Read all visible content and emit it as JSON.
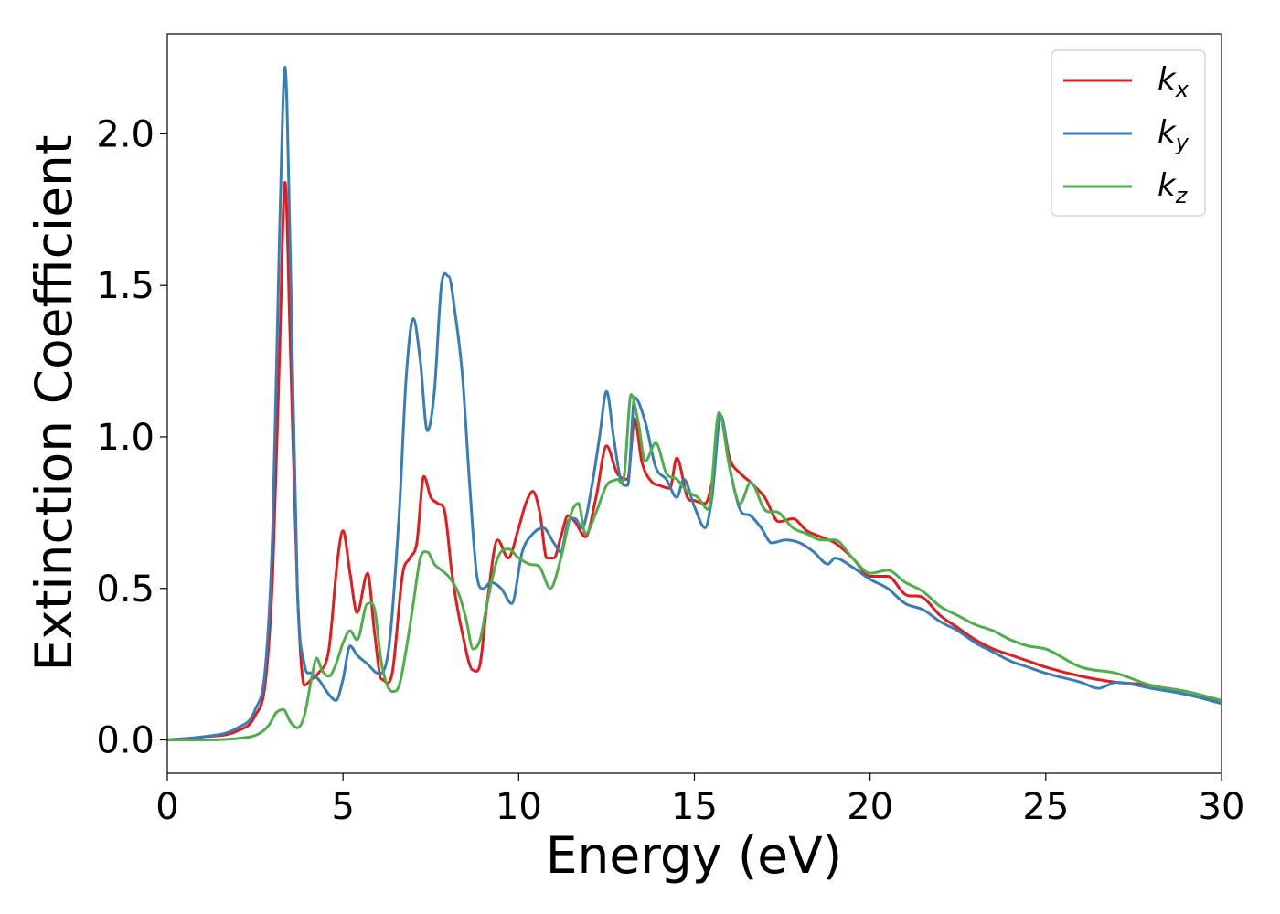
{
  "chart_data": {
    "type": "line",
    "title": "",
    "xlabel": "Energy (eV)",
    "ylabel": "Extinction Coefficient",
    "xlim": [
      0,
      30
    ],
    "ylim": [
      -0.11,
      2.33
    ],
    "xticks": [
      "0",
      "5",
      "10",
      "15",
      "20",
      "25",
      "30"
    ],
    "yticks": [
      "0.0",
      "0.5",
      "1.0",
      "1.5",
      "2.0"
    ],
    "grid": false,
    "legend_position": "top-right",
    "series": [
      {
        "name": "k_x",
        "label_main": "k",
        "label_sub": "x",
        "color": "#e41a1c",
        "x": [
          0,
          1,
          2,
          2.5,
          2.8,
          3.0,
          3.2,
          3.35,
          3.5,
          3.7,
          3.9,
          4.1,
          4.3,
          4.6,
          4.85,
          5.0,
          5.2,
          5.4,
          5.7,
          5.9,
          6.1,
          6.4,
          6.7,
          6.9,
          7.1,
          7.3,
          7.5,
          7.7,
          7.9,
          8.1,
          8.4,
          8.7,
          8.9,
          9.1,
          9.4,
          9.7,
          10.0,
          10.2,
          10.4,
          10.6,
          10.8,
          11.0,
          11.2,
          11.4,
          11.6,
          11.9,
          12.2,
          12.5,
          12.8,
          13.1,
          13.3,
          13.5,
          13.8,
          14.0,
          14.3,
          14.5,
          14.8,
          15.0,
          15.3,
          15.5,
          15.75,
          16.0,
          16.3,
          16.6,
          17.0,
          17.4,
          17.8,
          18.2,
          18.6,
          19.0,
          19.5,
          20.0,
          20.5,
          21.0,
          21.5,
          22.0,
          22.5,
          23.0,
          23.5,
          24.0,
          24.5,
          25.0,
          26.0,
          27.0,
          28.0,
          29.0,
          30.0
        ],
        "y": [
          0.0,
          0.01,
          0.03,
          0.08,
          0.2,
          0.55,
          1.3,
          1.84,
          1.3,
          0.5,
          0.18,
          0.2,
          0.22,
          0.3,
          0.6,
          0.69,
          0.55,
          0.42,
          0.55,
          0.35,
          0.2,
          0.22,
          0.55,
          0.6,
          0.65,
          0.87,
          0.8,
          0.78,
          0.75,
          0.55,
          0.35,
          0.23,
          0.25,
          0.45,
          0.66,
          0.6,
          0.7,
          0.78,
          0.82,
          0.75,
          0.6,
          0.6,
          0.67,
          0.74,
          0.72,
          0.67,
          0.8,
          0.97,
          0.88,
          0.86,
          1.06,
          0.92,
          0.85,
          0.84,
          0.83,
          0.93,
          0.8,
          0.79,
          0.78,
          0.85,
          1.07,
          0.93,
          0.88,
          0.85,
          0.8,
          0.72,
          0.73,
          0.69,
          0.67,
          0.65,
          0.6,
          0.54,
          0.54,
          0.48,
          0.47,
          0.41,
          0.37,
          0.33,
          0.3,
          0.28,
          0.26,
          0.24,
          0.21,
          0.19,
          0.18,
          0.15,
          0.13
        ]
      },
      {
        "name": "k_y",
        "label_main": "k",
        "label_sub": "y",
        "color": "#377eb8",
        "x": [
          0,
          1,
          2,
          2.5,
          2.8,
          3.0,
          3.2,
          3.35,
          3.5,
          3.7,
          3.9,
          4.1,
          4.3,
          4.6,
          4.8,
          5.0,
          5.2,
          5.4,
          5.7,
          6.0,
          6.3,
          6.6,
          6.8,
          7.0,
          7.2,
          7.4,
          7.6,
          7.8,
          8.0,
          8.2,
          8.4,
          8.6,
          8.8,
          9.0,
          9.2,
          9.5,
          9.8,
          10.1,
          10.4,
          10.7,
          11.0,
          11.2,
          11.4,
          11.6,
          11.8,
          12.1,
          12.3,
          12.5,
          12.7,
          12.9,
          13.1,
          13.3,
          13.6,
          13.9,
          14.2,
          14.5,
          14.7,
          15.0,
          15.3,
          15.5,
          15.75,
          16.0,
          16.3,
          16.6,
          16.9,
          17.2,
          17.6,
          18.0,
          18.4,
          18.8,
          19.0,
          19.5,
          20.0,
          20.5,
          21.0,
          21.5,
          22.0,
          22.5,
          23.0,
          23.5,
          24.0,
          24.5,
          25.0,
          26.0,
          26.5,
          27.0,
          28.0,
          29.0,
          30.0
        ],
        "y": [
          0.0,
          0.01,
          0.04,
          0.1,
          0.25,
          0.7,
          1.7,
          2.22,
          1.6,
          0.5,
          0.25,
          0.22,
          0.2,
          0.15,
          0.13,
          0.2,
          0.31,
          0.28,
          0.25,
          0.22,
          0.3,
          0.75,
          1.2,
          1.39,
          1.25,
          1.02,
          1.15,
          1.5,
          1.53,
          1.4,
          1.2,
          0.85,
          0.55,
          0.5,
          0.52,
          0.5,
          0.45,
          0.62,
          0.68,
          0.7,
          0.65,
          0.62,
          0.72,
          0.73,
          0.7,
          0.85,
          1.0,
          1.15,
          1.0,
          0.86,
          0.84,
          1.13,
          1.05,
          0.9,
          0.86,
          0.8,
          0.86,
          0.77,
          0.7,
          0.8,
          1.07,
          0.9,
          0.76,
          0.74,
          0.7,
          0.65,
          0.66,
          0.65,
          0.62,
          0.58,
          0.6,
          0.57,
          0.53,
          0.5,
          0.45,
          0.43,
          0.39,
          0.36,
          0.32,
          0.29,
          0.26,
          0.24,
          0.22,
          0.19,
          0.17,
          0.19,
          0.17,
          0.15,
          0.12
        ]
      },
      {
        "name": "k_z",
        "label_main": "k",
        "label_sub": "z",
        "color": "#4daf4a",
        "x": [
          0,
          1,
          2,
          2.6,
          2.9,
          3.1,
          3.3,
          3.5,
          3.7,
          3.9,
          4.1,
          4.25,
          4.4,
          4.6,
          4.8,
          5.0,
          5.2,
          5.4,
          5.7,
          5.9,
          6.1,
          6.4,
          6.6,
          6.8,
          7.0,
          7.2,
          7.4,
          7.6,
          7.8,
          8.0,
          8.3,
          8.5,
          8.7,
          8.9,
          9.1,
          9.4,
          9.7,
          10.0,
          10.3,
          10.6,
          10.9,
          11.2,
          11.5,
          11.7,
          11.9,
          12.2,
          12.5,
          12.8,
          13.0,
          13.2,
          13.4,
          13.6,
          13.9,
          14.2,
          14.5,
          14.8,
          15.1,
          15.4,
          15.7,
          16.0,
          16.3,
          16.6,
          17.0,
          17.4,
          17.8,
          18.2,
          18.6,
          19.0,
          19.5,
          20.0,
          20.5,
          21.0,
          21.5,
          22.0,
          22.5,
          23.0,
          23.5,
          24.0,
          24.5,
          25.0,
          26.0,
          27.0,
          28.0,
          29.0,
          30.0
        ],
        "y": [
          0.0,
          0.0,
          0.005,
          0.02,
          0.05,
          0.09,
          0.1,
          0.06,
          0.04,
          0.08,
          0.2,
          0.27,
          0.23,
          0.21,
          0.25,
          0.32,
          0.36,
          0.33,
          0.45,
          0.43,
          0.25,
          0.16,
          0.18,
          0.3,
          0.45,
          0.6,
          0.62,
          0.58,
          0.56,
          0.54,
          0.48,
          0.4,
          0.3,
          0.33,
          0.45,
          0.6,
          0.63,
          0.6,
          0.58,
          0.57,
          0.5,
          0.6,
          0.75,
          0.78,
          0.68,
          0.75,
          0.84,
          0.86,
          0.87,
          1.14,
          1.05,
          0.92,
          0.98,
          0.88,
          0.86,
          0.82,
          0.8,
          0.76,
          1.08,
          0.9,
          0.78,
          0.85,
          0.76,
          0.75,
          0.7,
          0.68,
          0.66,
          0.66,
          0.6,
          0.55,
          0.56,
          0.52,
          0.49,
          0.44,
          0.41,
          0.38,
          0.36,
          0.33,
          0.31,
          0.3,
          0.24,
          0.22,
          0.18,
          0.16,
          0.13
        ]
      }
    ]
  }
}
